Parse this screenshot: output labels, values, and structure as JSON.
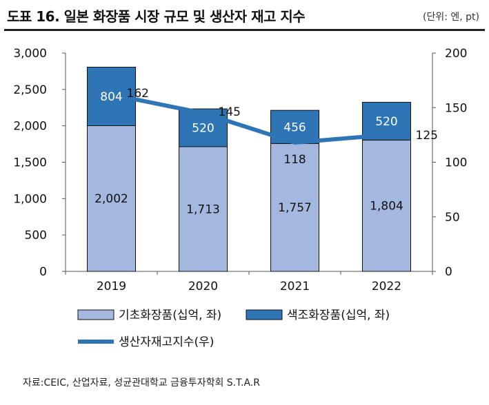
{
  "header": {
    "title": "도표 16. 일본 화장품 시장 규모 및 생산자 재고 지수",
    "unit": "(단위: 엔, pt)"
  },
  "footer": {
    "source": "자료:CEIC, 산업자료, 성균관대학교 금융투자학회 S.T.A.R"
  },
  "chart_data": {
    "type": "bar",
    "categories": [
      "2019",
      "2020",
      "2021",
      "2022"
    ],
    "stacked": true,
    "series": [
      {
        "name": "기초화장품(십억, 좌)",
        "values": [
          2002,
          1713,
          1757,
          1804
        ],
        "labels": [
          "2,002",
          "1,713",
          "1,757",
          "1,804"
        ],
        "color": "#a3b7df",
        "axis": "left",
        "type": "bar"
      },
      {
        "name": "색조화장품(십억, 좌)",
        "values": [
          804,
          520,
          456,
          520
        ],
        "labels": [
          "804",
          "520",
          "456",
          "520"
        ],
        "color": "#2e75b6",
        "axis": "left",
        "type": "bar"
      },
      {
        "name": "생산자재고지수(우)",
        "values": [
          162,
          145,
          118,
          125
        ],
        "labels": [
          "162",
          "145",
          "118",
          "125"
        ],
        "color": "#2e75b6",
        "axis": "right",
        "type": "line"
      }
    ],
    "y_left": {
      "min": 0,
      "max": 3000,
      "ticks": [
        "0",
        "500",
        "1,000",
        "1,500",
        "2,000",
        "2,500",
        "3,000"
      ]
    },
    "y_right": {
      "min": 0,
      "max": 200,
      "ticks": [
        "0",
        "50",
        "100",
        "150",
        "200"
      ]
    },
    "grid": false,
    "legend": "bottom"
  }
}
